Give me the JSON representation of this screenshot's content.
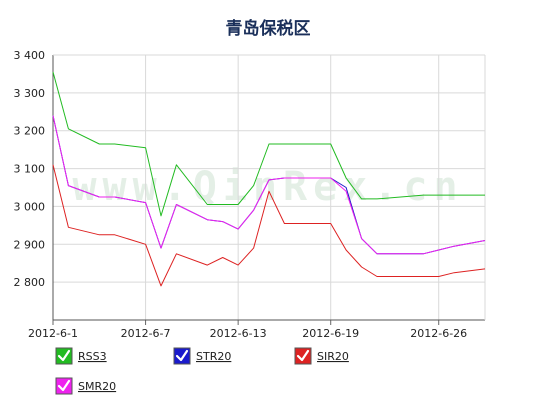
{
  "chart_data": {
    "type": "line",
    "title": "青岛保税区",
    "watermark": "www.QinRex.cn",
    "ylim": [
      2700,
      3400
    ],
    "yticks": [
      {
        "value": 3400,
        "label": "3 400"
      },
      {
        "value": 3300,
        "label": "3 300"
      },
      {
        "value": 3200,
        "label": "3 200"
      },
      {
        "value": 3100,
        "label": "3 100"
      },
      {
        "value": 3000,
        "label": "3 000"
      },
      {
        "value": 2900,
        "label": "2 900"
      },
      {
        "value": 2800,
        "label": "2 800"
      }
    ],
    "xlim": [
      "2012-06-01",
      "2012-06-29"
    ],
    "xticks": [
      {
        "value": "2012-06-01",
        "label": "2012-6-1"
      },
      {
        "value": "2012-06-07",
        "label": "2012-6-7"
      },
      {
        "value": "2012-06-13",
        "label": "2012-6-13"
      },
      {
        "value": "2012-06-19",
        "label": "2012-6-19"
      },
      {
        "value": "2012-06-26",
        "label": "2012-6-26"
      }
    ],
    "grid": true,
    "legend_position": "bottom",
    "x": [
      "2012-06-01",
      "2012-06-02",
      "2012-06-04",
      "2012-06-05",
      "2012-06-07",
      "2012-06-08",
      "2012-06-09",
      "2012-06-11",
      "2012-06-12",
      "2012-06-13",
      "2012-06-14",
      "2012-06-15",
      "2012-06-16",
      "2012-06-18",
      "2012-06-19",
      "2012-06-20",
      "2012-06-21",
      "2012-06-22",
      "2012-06-25",
      "2012-06-26",
      "2012-06-27",
      "2012-06-29"
    ],
    "series": [
      {
        "name": "RSS3",
        "color": "#22bb22",
        "values": [
          3355,
          3205,
          3165,
          3165,
          3155,
          2975,
          3110,
          3005,
          3005,
          3005,
          3055,
          3165,
          3165,
          3165,
          3165,
          3075,
          3020,
          3020,
          3030,
          3030,
          3030,
          3030
        ]
      },
      {
        "name": "STR20",
        "color": "#1a1acc",
        "values": [
          3240,
          3055,
          3025,
          3025,
          3010,
          2890,
          3005,
          2965,
          2960,
          2940,
          2990,
          3070,
          3075,
          3075,
          3075,
          3050,
          2915,
          2875,
          2875,
          2885,
          2895,
          2910
        ]
      },
      {
        "name": "SIR20",
        "color": "#dd2222",
        "values": [
          3110,
          2945,
          2925,
          2925,
          2900,
          2790,
          2875,
          2845,
          2865,
          2845,
          2890,
          3040,
          2955,
          2955,
          2955,
          2885,
          2840,
          2815,
          2815,
          2815,
          2825,
          2835
        ]
      },
      {
        "name": "SMR20",
        "color": "#ee22ee",
        "values": [
          3240,
          3055,
          3025,
          3025,
          3010,
          2890,
          3005,
          2965,
          2960,
          2940,
          2990,
          3070,
          3075,
          3075,
          3075,
          3040,
          2915,
          2875,
          2875,
          2885,
          2895,
          2910
        ]
      }
    ]
  }
}
